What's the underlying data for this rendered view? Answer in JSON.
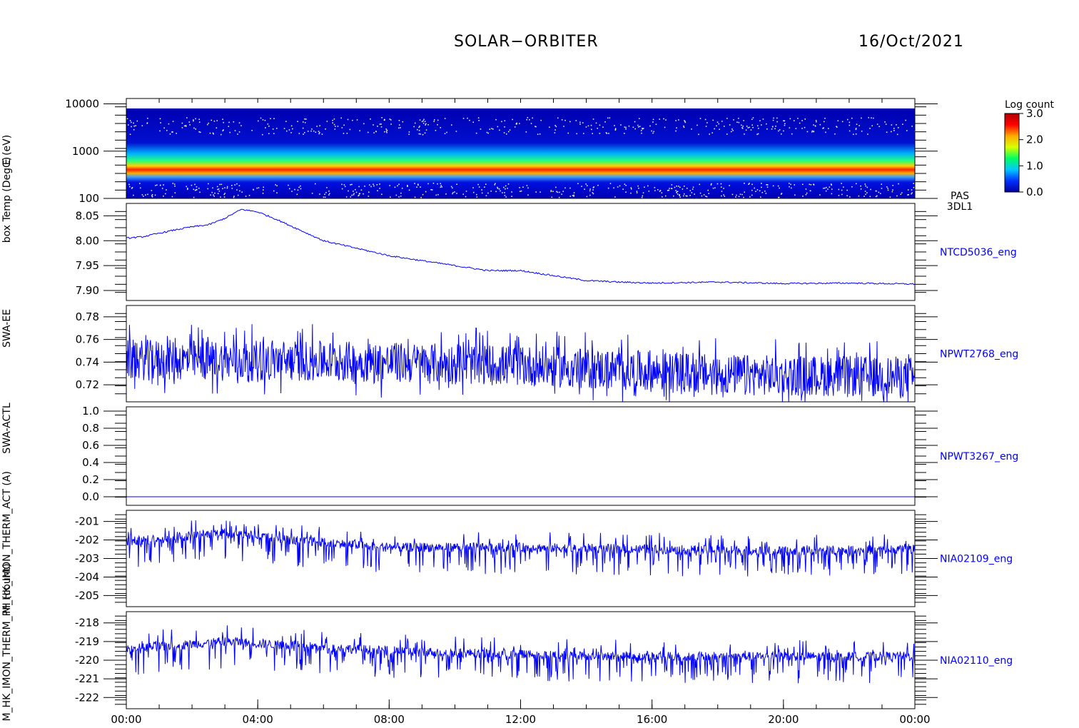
{
  "header": {
    "mission": "SOLAR−ORBITER",
    "date": "16/Oct/2021"
  },
  "colorbar": {
    "title": "Log count",
    "ticks": [
      "3.0",
      "2.0",
      "1.0",
      "0.0"
    ],
    "stops": [
      "#0000a0",
      "#0030ff",
      "#00c8ff",
      "#00ff60",
      "#d8ff00",
      "#ffaa00",
      "#ff0000",
      "#b00000"
    ]
  },
  "xaxis": {
    "ticks": [
      "00:00",
      "04:00",
      "08:00",
      "12:00",
      "16:00",
      "20:00",
      "00:00"
    ]
  },
  "line_color": "#0000ff",
  "chart_data": [
    {
      "type": "heatmap",
      "ylabel": "E (eV)",
      "ytick_labels": [
        "10000",
        "1000",
        "100"
      ],
      "yticks": [
        10000,
        1000,
        100
      ],
      "ylim": [
        100,
        13000
      ],
      "yscale": "log",
      "side_label": [
        "PAS",
        "3DL1"
      ],
      "peak_energy_eV": 560,
      "peak_log_count": 3.0
    },
    {
      "type": "line",
      "ylabel": "box Temp (DegC)",
      "side_label": "NTCD5036_eng",
      "ytick_labels": [
        "8.05",
        "8.00",
        "7.95",
        "7.90"
      ],
      "yticks": [
        8.05,
        8.0,
        7.95,
        7.9
      ],
      "ylim": [
        7.88,
        8.075
      ],
      "x_hours": [
        0,
        0.5,
        1,
        1.5,
        2,
        2.5,
        3,
        3.5,
        4,
        4.5,
        5,
        6,
        7,
        8,
        9,
        10,
        11,
        12,
        13,
        14,
        15,
        16,
        18,
        20,
        22,
        24
      ],
      "y": [
        8.005,
        8.008,
        8.015,
        8.022,
        8.028,
        8.032,
        8.045,
        8.063,
        8.058,
        8.045,
        8.03,
        8.0,
        7.985,
        7.97,
        7.96,
        7.95,
        7.94,
        7.94,
        7.93,
        7.92,
        7.917,
        7.915,
        7.917,
        7.914,
        7.915,
        7.913
      ]
    },
    {
      "type": "line",
      "ylabel": "SWA-EE",
      "side_label": "NPWT2768_eng",
      "ytick_labels": [
        "0.78",
        "0.76",
        "0.74",
        "0.72"
      ],
      "yticks": [
        0.78,
        0.76,
        0.74,
        0.72
      ],
      "ylim": [
        0.705,
        0.79
      ],
      "x_hours": [
        0,
        6,
        12,
        18,
        24
      ],
      "y": [
        0.742,
        0.741,
        0.737,
        0.729,
        0.727
      ]
    },
    {
      "type": "line",
      "ylabel": "SWA-ACTL",
      "side_label": "NPWT3267_eng",
      "ytick_labels": [
        "1.0",
        "0.8",
        "0.6",
        "0.4",
        "0.2",
        "0.0"
      ],
      "yticks": [
        1.0,
        0.8,
        0.6,
        0.4,
        0.2,
        0.0
      ],
      "ylim": [
        -0.1,
        1.05
      ],
      "x_hours": [
        0,
        24
      ],
      "y": [
        0.0,
        0.0
      ]
    },
    {
      "type": "line",
      "ylabel": "M_HK_IMON_THERM_ACT (A)",
      "side_label": "NIA02109_eng",
      "ytick_labels": [
        "-201",
        "-202",
        "-203",
        "-204",
        "-205"
      ],
      "yticks": [
        -201,
        -202,
        -203,
        -204,
        -205
      ],
      "ylim": [
        -205.6,
        -200.4
      ],
      "x_hours": [
        0,
        3,
        5,
        8,
        12,
        16,
        20,
        24
      ],
      "y": [
        -202.1,
        -201.6,
        -202.0,
        -202.4,
        -202.4,
        -202.5,
        -202.6,
        -202.5
      ]
    },
    {
      "type": "line",
      "ylabel": "M_HK_IMON_THERM_PH (count)",
      "side_label": "NIA02110_eng",
      "ytick_labels": [
        "-218",
        "-219",
        "-220",
        "-221",
        "-222"
      ],
      "yticks": [
        -218,
        -219,
        -220,
        -221,
        -222
      ],
      "ylim": [
        -222.6,
        -217.4
      ],
      "x_hours": [
        0,
        3,
        5,
        8,
        12,
        16,
        20,
        24
      ],
      "y": [
        -219.4,
        -219.0,
        -219.2,
        -219.5,
        -219.7,
        -219.8,
        -219.8,
        -219.8
      ]
    }
  ]
}
